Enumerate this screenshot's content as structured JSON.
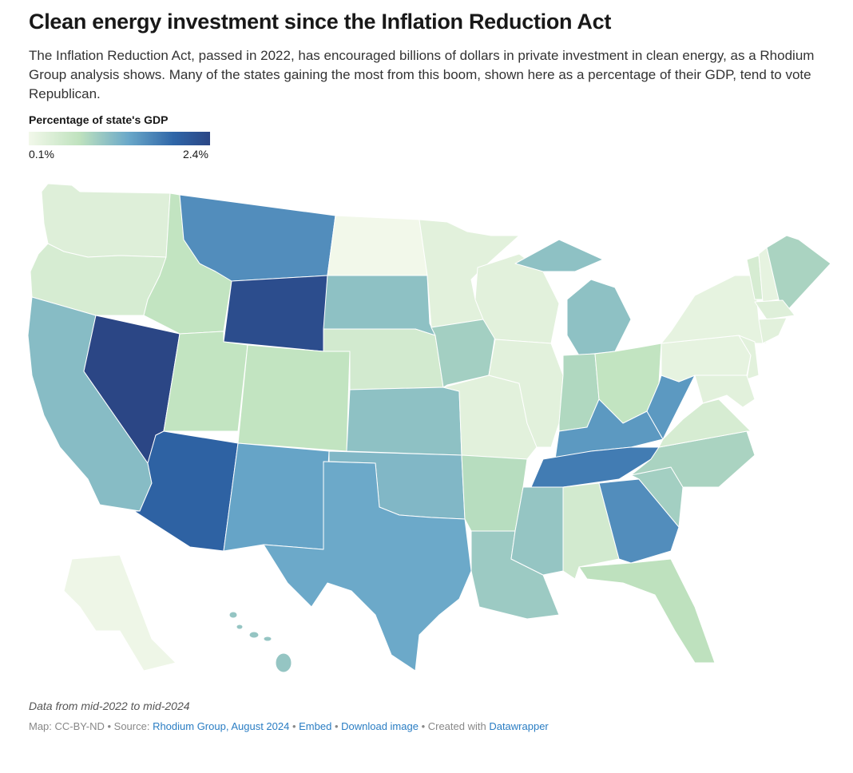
{
  "title": "Clean energy investment since the Inflation Reduction Act",
  "description": "The Inflation Reduction Act, passed in 2022, has encouraged billions of dollars in private investment in clean energy, as a Rhodium Group analysis shows. Many of the states gaining the most from this boom, shown here as a percentage of their GDP, tend to vote Republican.",
  "legend": {
    "title": "Percentage of state's GDP",
    "min_label": "0.1%",
    "max_label": "2.4%",
    "min": 0.1,
    "max": 2.4
  },
  "note": "Data from mid-2022 to mid-2024",
  "footer": {
    "prefix": "Map: CC-BY-ND • Source: ",
    "source_link": "Rhodium Group, August 2024",
    "sep1": " • ",
    "embed": "Embed",
    "sep2": "  • ",
    "download": "Download image",
    "sep3": " • Created with ",
    "dw": "Datawrapper"
  },
  "states": [
    {
      "id": "WA",
      "value": 0.35
    },
    {
      "id": "OR",
      "value": 0.45
    },
    {
      "id": "CA",
      "value": 1.15
    },
    {
      "id": "NV",
      "value": 2.4
    },
    {
      "id": "ID",
      "value": 0.7
    },
    {
      "id": "MT",
      "value": 1.6
    },
    {
      "id": "WY",
      "value": 2.3
    },
    {
      "id": "UT",
      "value": 0.7
    },
    {
      "id": "CO",
      "value": 0.7
    },
    {
      "id": "AZ",
      "value": 2.0
    },
    {
      "id": "NM",
      "value": 1.4
    },
    {
      "id": "ND",
      "value": 0.1
    },
    {
      "id": "SD",
      "value": 1.1
    },
    {
      "id": "NE",
      "value": 0.5
    },
    {
      "id": "KS",
      "value": 1.1
    },
    {
      "id": "OK",
      "value": 1.2
    },
    {
      "id": "TX",
      "value": 1.35
    },
    {
      "id": "MN",
      "value": 0.3
    },
    {
      "id": "IA",
      "value": 0.95
    },
    {
      "id": "MO",
      "value": 0.3
    },
    {
      "id": "AR",
      "value": 0.8
    },
    {
      "id": "LA",
      "value": 1.0
    },
    {
      "id": "WI",
      "value": 0.3
    },
    {
      "id": "IL",
      "value": 0.3
    },
    {
      "id": "MI",
      "value": 1.1
    },
    {
      "id": "IN",
      "value": 0.85
    },
    {
      "id": "OH",
      "value": 0.7
    },
    {
      "id": "KY",
      "value": 1.5
    },
    {
      "id": "TN",
      "value": 1.75
    },
    {
      "id": "MS",
      "value": 1.05
    },
    {
      "id": "AL",
      "value": 0.5
    },
    {
      "id": "GA",
      "value": 1.6
    },
    {
      "id": "FL",
      "value": 0.75
    },
    {
      "id": "SC",
      "value": 0.95
    },
    {
      "id": "NC",
      "value": 0.9
    },
    {
      "id": "VA",
      "value": 0.45
    },
    {
      "id": "WV",
      "value": 1.5
    },
    {
      "id": "PA",
      "value": 0.25
    },
    {
      "id": "NY",
      "value": 0.25
    },
    {
      "id": "NJ",
      "value": 0.3
    },
    {
      "id": "MD",
      "value": 0.3
    },
    {
      "id": "VT",
      "value": 0.45
    },
    {
      "id": "NH",
      "value": 0.25
    },
    {
      "id": "ME",
      "value": 0.9
    },
    {
      "id": "MA",
      "value": 0.35
    },
    {
      "id": "CT",
      "value": 0.3
    },
    {
      "id": "AK",
      "value": 0.15
    },
    {
      "id": "HI",
      "value": 1.05
    }
  ]
}
